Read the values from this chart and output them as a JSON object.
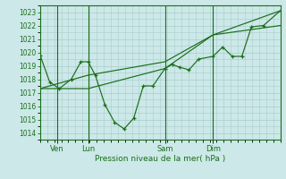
{
  "bg_color": "#cce8e8",
  "grid_color": "#aacccc",
  "line_color": "#1a6e1a",
  "xlabel": "Pression niveau de la mer( hPa )",
  "ylim": [
    1013.5,
    1023.5
  ],
  "yticks": [
    1014,
    1015,
    1016,
    1017,
    1018,
    1019,
    1020,
    1021,
    1022,
    1023
  ],
  "xlim": [
    0,
    100
  ],
  "xtick_positions": [
    7,
    20,
    52,
    72
  ],
  "xtick_labels": [
    "Ven",
    "Lun",
    "Sam",
    "Dim"
  ],
  "vline_positions": [
    7,
    20,
    52,
    72
  ],
  "series1_x": [
    0,
    4,
    8,
    13,
    17,
    20,
    23,
    27,
    31,
    35,
    39,
    43,
    47,
    52,
    55,
    58,
    62,
    66,
    72,
    76,
    80,
    84,
    88,
    93,
    100
  ],
  "series1_y": [
    1019.8,
    1017.8,
    1017.3,
    1018.0,
    1019.3,
    1019.3,
    1018.3,
    1016.1,
    1014.8,
    1014.3,
    1015.1,
    1017.5,
    1017.5,
    1018.8,
    1019.1,
    1018.9,
    1018.7,
    1019.5,
    1019.7,
    1020.4,
    1019.7,
    1019.7,
    1021.9,
    1022.0,
    1023.1
  ],
  "series2_x": [
    0,
    20,
    52,
    72,
    100
  ],
  "series2_y": [
    1017.3,
    1017.3,
    1018.8,
    1021.3,
    1023.1
  ],
  "series3_x": [
    0,
    20,
    52,
    72,
    100
  ],
  "series3_y": [
    1017.3,
    1018.3,
    1019.3,
    1021.3,
    1022.0
  ]
}
